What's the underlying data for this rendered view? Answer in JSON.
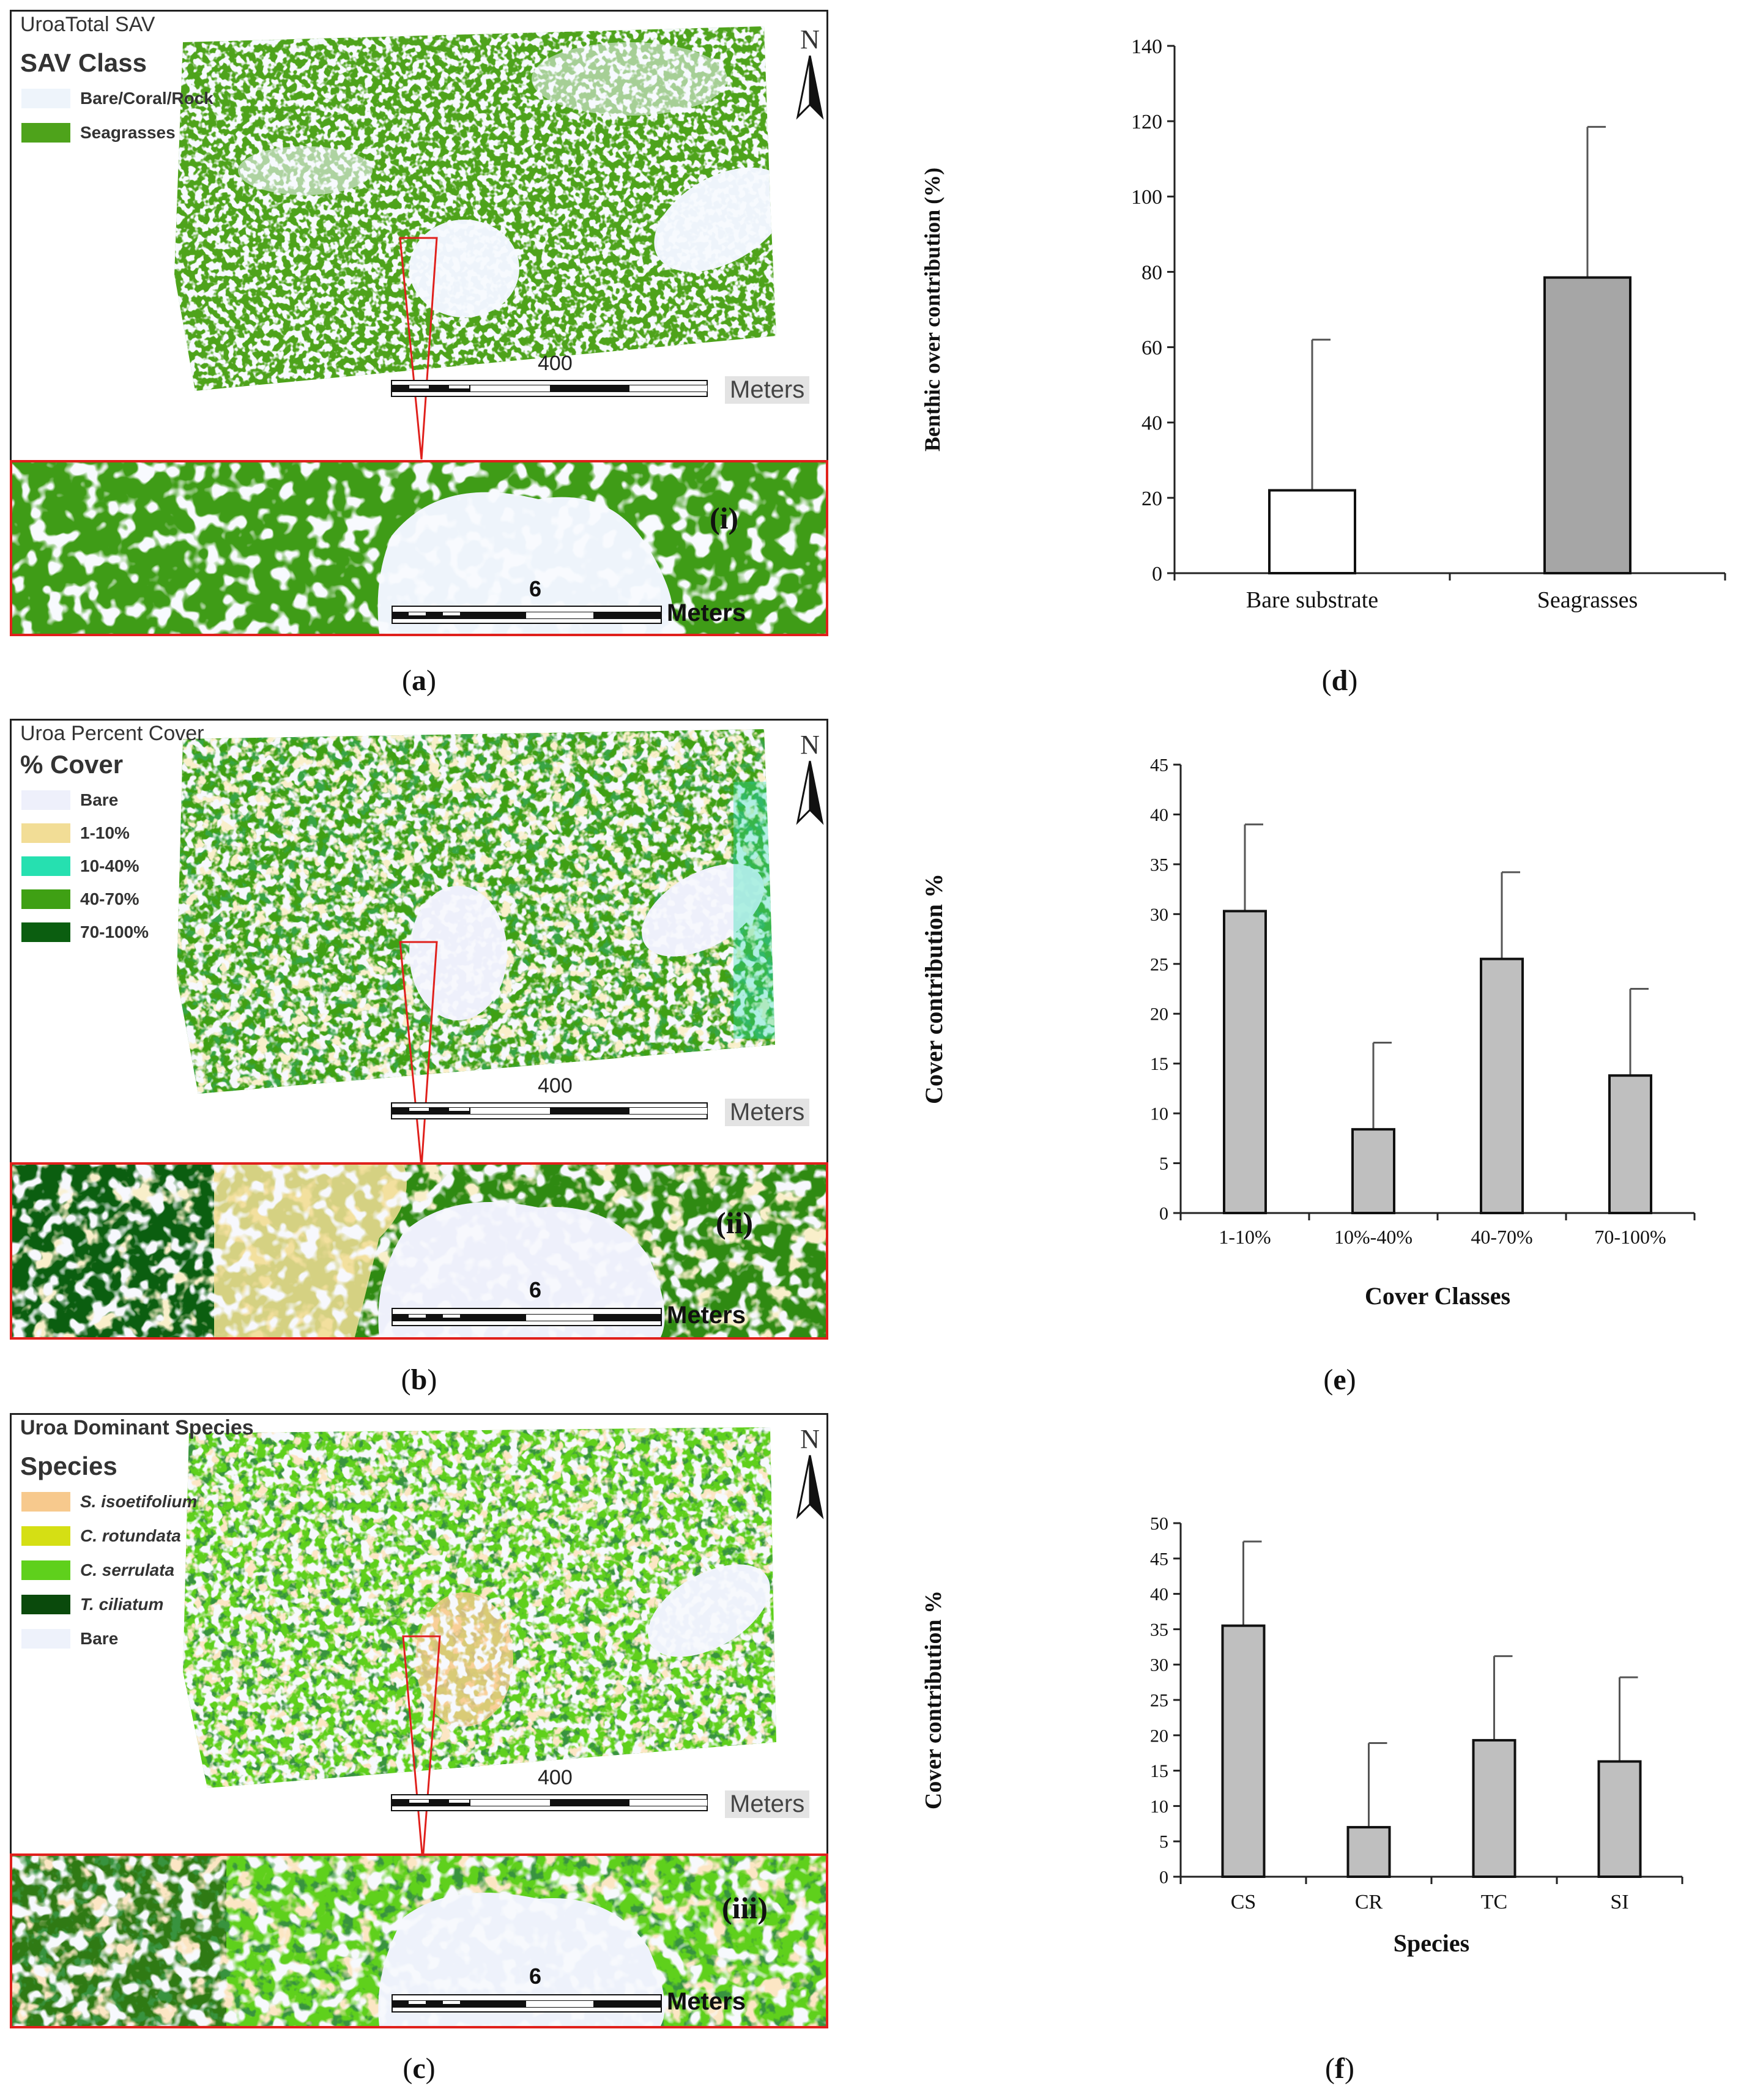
{
  "maps": [
    {
      "id": "a",
      "title": "UroaTotal SAV",
      "legend_title": "SAV Class",
      "legend": [
        {
          "label": "Bare/Coral/Rock",
          "color": "#eef4fb",
          "italic": false
        },
        {
          "label": "Seagrasses",
          "color": "#4ea31b",
          "italic": false
        }
      ],
      "scale_label": "400",
      "scale_units": "Meters",
      "inset_label": "(i)",
      "inset_scale_label": "6",
      "inset_scale_units": "Meters",
      "caption": "a"
    },
    {
      "id": "b",
      "title": "Uroa Percent Cover",
      "legend_title": "% Cover",
      "legend": [
        {
          "label": "Bare",
          "color": "#eef0fb",
          "italic": false
        },
        {
          "label": "1-10%",
          "color": "#f2dd96",
          "italic": false
        },
        {
          "label": "10-40%",
          "color": "#26e0b0",
          "italic": false
        },
        {
          "label": "40-70%",
          "color": "#3fa014",
          "italic": false
        },
        {
          "label": "70-100%",
          "color": "#0b5e10",
          "italic": false
        }
      ],
      "scale_label": "400",
      "scale_units": "Meters",
      "inset_label": "(ii)",
      "inset_scale_label": "6",
      "inset_scale_units": "Meters",
      "caption": "b"
    },
    {
      "id": "c",
      "title": "Uroa Dominant Species",
      "legend_title": "Species",
      "legend": [
        {
          "label": "S. isoetifolium",
          "color": "#f7c98d",
          "italic": true
        },
        {
          "label": "C. rotundata",
          "color": "#d5df14",
          "italic": true
        },
        {
          "label": "C. serrulata",
          "color": "#5fd01c",
          "italic": true
        },
        {
          "label": "T. ciliatum",
          "color": "#0a4a0c",
          "italic": true
        },
        {
          "label": "Bare",
          "color": "#eef2fb",
          "italic": false
        }
      ],
      "scale_label": "400",
      "scale_units": "Meters",
      "inset_label": "(iii)",
      "inset_scale_label": "6",
      "inset_scale_units": "Meters",
      "caption": "c"
    }
  ],
  "north_label": "N",
  "chart_data": [
    {
      "id": "d",
      "type": "bar",
      "title": "",
      "categories": [
        "Bare substrate",
        "Seagrasses"
      ],
      "values": [
        22,
        78.5
      ],
      "errors": [
        40,
        40
      ],
      "bar_colors": [
        "#ffffff",
        "#a6a6a6"
      ],
      "xlabel": "",
      "ylabel": "Benthic over contribution (%)",
      "ylim": [
        0,
        140
      ],
      "yticks": [
        0,
        20,
        40,
        60,
        80,
        100,
        120,
        140
      ],
      "caption": "d"
    },
    {
      "id": "e",
      "type": "bar",
      "title": "",
      "categories": [
        "1-10%",
        "10%-40%",
        "40-70%",
        "70-100%"
      ],
      "values": [
        30.3,
        8.4,
        25.5,
        13.8
      ],
      "errors": [
        8.7,
        8.7,
        8.7,
        8.7
      ],
      "bar_colors": [
        "#bfbfbf",
        "#bfbfbf",
        "#bfbfbf",
        "#bfbfbf"
      ],
      "xlabel": "Cover Classes",
      "ylabel": "Cover contribution %",
      "ylim": [
        0,
        45
      ],
      "yticks": [
        0,
        5,
        10,
        15,
        20,
        25,
        30,
        35,
        40,
        45
      ],
      "caption": "e"
    },
    {
      "id": "f",
      "type": "bar",
      "title": "",
      "categories": [
        "CS",
        "CR",
        "TC",
        "SI"
      ],
      "values": [
        35.5,
        7,
        19.3,
        16.3
      ],
      "errors": [
        11.9,
        11.9,
        11.9,
        11.9
      ],
      "bar_colors": [
        "#bfbfbf",
        "#bfbfbf",
        "#bfbfbf",
        "#bfbfbf"
      ],
      "xlabel": "Species",
      "ylabel": "Cover contribution %",
      "ylim": [
        0,
        50
      ],
      "yticks": [
        0,
        5,
        10,
        15,
        20,
        25,
        30,
        35,
        40,
        45,
        50
      ],
      "caption": "f"
    }
  ]
}
